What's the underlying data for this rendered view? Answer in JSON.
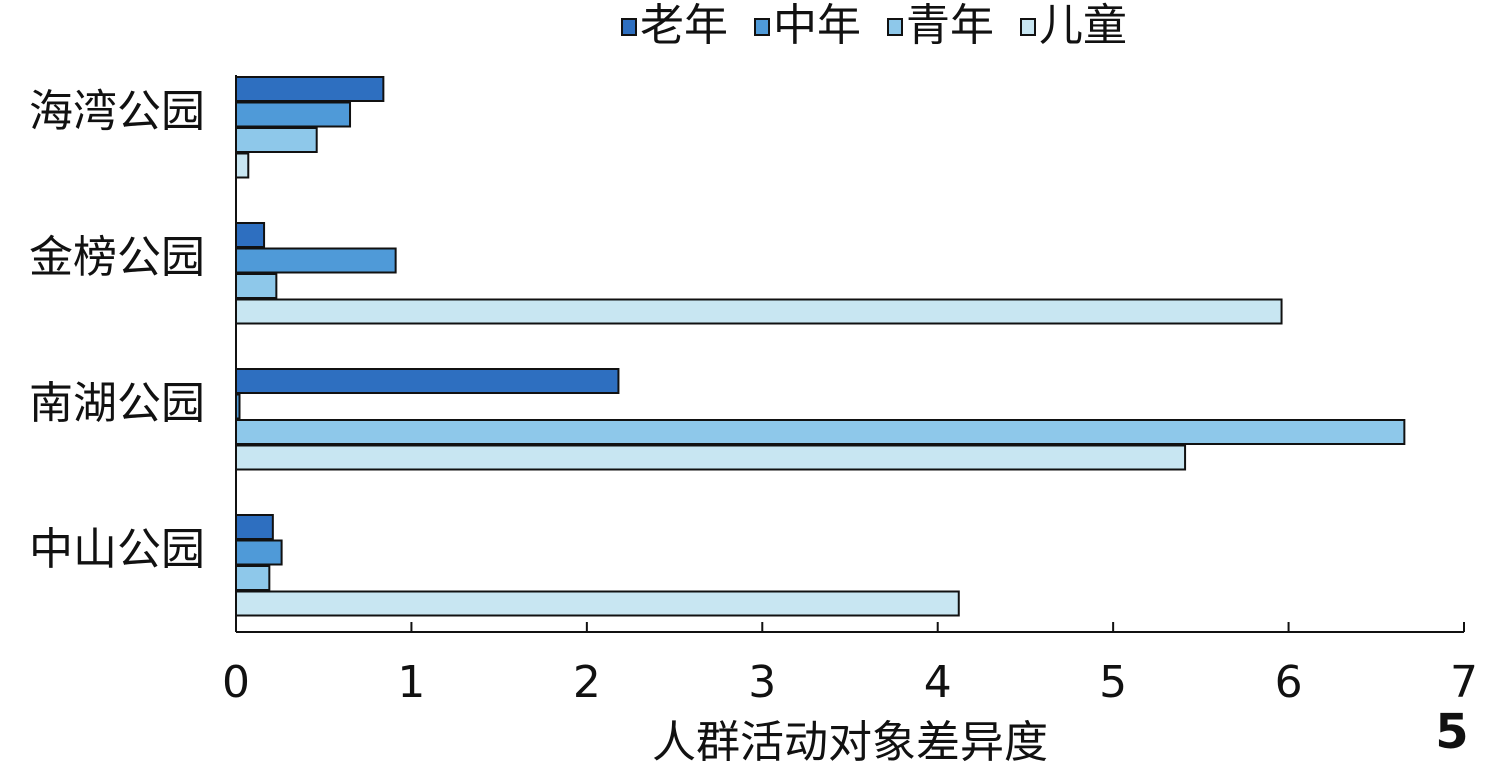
{
  "chart_data": {
    "type": "barh",
    "categories": [
      "海湾公园",
      "金榜公园",
      "南湖公园",
      "中山公园"
    ],
    "series": [
      {
        "name": "老年",
        "color": "#2e6fc0",
        "values": [
          0.84,
          0.16,
          2.18,
          0.21
        ]
      },
      {
        "name": "中年",
        "color": "#4f9ad8",
        "values": [
          0.65,
          0.91,
          0.02,
          0.26
        ]
      },
      {
        "name": "青年",
        "color": "#8ec8ea",
        "values": [
          0.46,
          0.23,
          6.66,
          0.19
        ]
      },
      {
        "name": "儿童",
        "color": "#c8e6f2",
        "values": [
          0.07,
          5.96,
          5.41,
          4.12
        ]
      }
    ],
    "xlabel": "人群活动对象差异度",
    "xlim": [
      0,
      7
    ],
    "xticks": [
      0,
      1,
      2,
      3,
      4,
      5,
      6,
      7
    ],
    "annotation": "5"
  }
}
